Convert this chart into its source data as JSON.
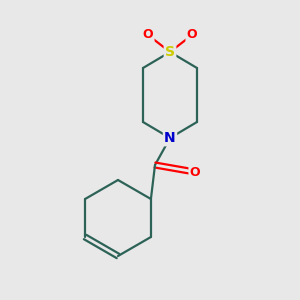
{
  "background_color": "#e8e8e8",
  "bond_color": "#2d6357",
  "atom_colors": {
    "O": "#ff0000",
    "N": "#0000cc",
    "S": "#cccc00"
  },
  "font_size": 9,
  "bond_width": 1.6,
  "figsize": [
    3.0,
    3.0
  ],
  "dpi": 100
}
